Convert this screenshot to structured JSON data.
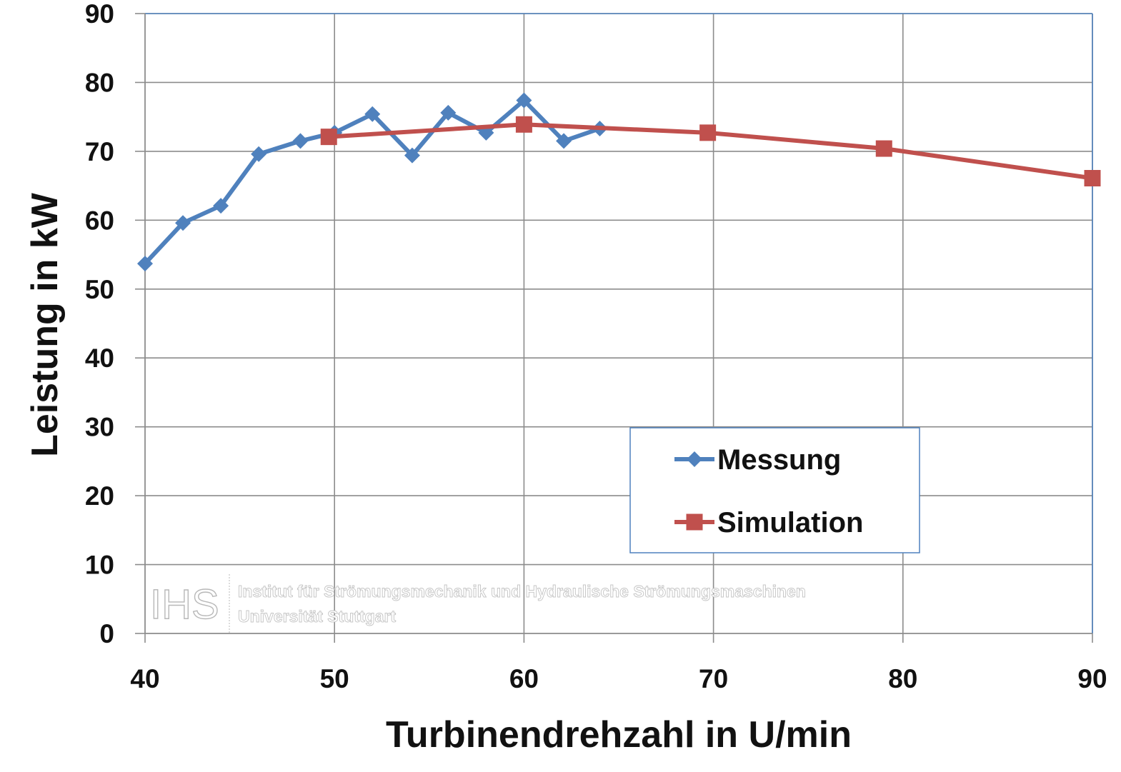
{
  "chart_data": {
    "type": "line",
    "xlabel": "Turbinendrehzahl in U/min",
    "ylabel": "Leistung in kW",
    "xlim": [
      40,
      90
    ],
    "ylim": [
      0,
      90
    ],
    "x_ticks": [
      "40",
      "50",
      "60",
      "70",
      "80",
      "90"
    ],
    "y_ticks": [
      "0",
      "10",
      "20",
      "30",
      "40",
      "50",
      "60",
      "70",
      "80",
      "90"
    ],
    "grid": true,
    "legend_position": "center-right",
    "series": [
      {
        "name": "Messung",
        "color": "#4f81bd",
        "marker": "diamond",
        "x": [
          40,
          42,
          44,
          46,
          48.2,
          50,
          52,
          54.1,
          56,
          58,
          60,
          62.1,
          64
        ],
        "y": [
          53.7,
          59.6,
          62.1,
          69.6,
          71.5,
          72.7,
          75.4,
          69.4,
          75.6,
          72.7,
          77.4,
          71.5,
          73.3
        ]
      },
      {
        "name": "Simulation",
        "color": "#c0504d",
        "marker": "square",
        "x": [
          49.7,
          60,
          69.7,
          79,
          90
        ],
        "y": [
          72.1,
          73.9,
          72.7,
          70.4,
          66.1
        ]
      }
    ]
  },
  "watermark": {
    "logo": "IHS",
    "line1": "Institut für Strömungsmechanik und Hydraulische Strömungsmaschinen",
    "line2": "Universität Stuttgart"
  }
}
